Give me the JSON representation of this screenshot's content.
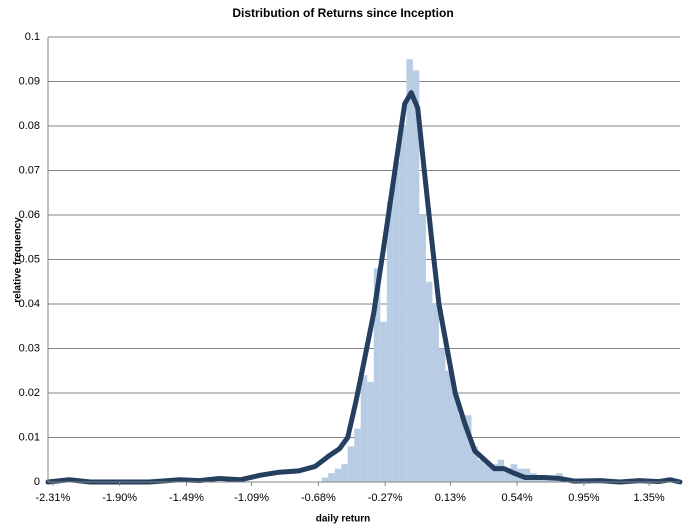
{
  "chart_data": {
    "type": "histogram",
    "title": "Distribution of Returns since Inception",
    "x_label": "daily return",
    "y_label": "relative frequency",
    "bins": [
      -0.66,
      -0.62,
      -0.58,
      -0.54,
      -0.5,
      -0.46,
      -0.42,
      -0.38,
      -0.34,
      -0.3,
      -0.26,
      -0.22,
      -0.18,
      -0.14,
      -0.1,
      -0.06,
      -0.02,
      0.02,
      0.06,
      0.1,
      0.14,
      0.18,
      0.22,
      0.26,
      0.3,
      0.34,
      0.38,
      0.42,
      0.46,
      0.5,
      0.54,
      0.58,
      0.62,
      0.66,
      0.7,
      0.74,
      0.78,
      0.82,
      0.86,
      0.9,
      0.94,
      0.98
    ],
    "values": [
      0.001,
      0.002,
      0.003,
      0.004,
      0.008,
      0.012,
      0.024,
      0.0225,
      0.048,
      0.036,
      0.063,
      0.072,
      0.08,
      0.095,
      0.0925,
      0.06,
      0.045,
      0.04,
      0.03,
      0.025,
      0.02,
      0.015,
      0.015,
      0.008,
      0.005,
      0.004,
      0.004,
      0.005,
      0.003,
      0.004,
      0.003,
      0.003,
      0.002,
      0.001,
      0.001,
      0.0015,
      0.002,
      0.001,
      0.0005,
      0.0005,
      0.0005
    ],
    "color": "#b8cce4",
    "line": {
      "color": "#243f60",
      "x": [
        -2.34,
        -2.21,
        -2.08,
        -1.72,
        -1.53,
        -1.41,
        -1.29,
        -1.16,
        -1.04,
        -0.92,
        -0.8,
        -0.7,
        -0.61,
        -0.55,
        -0.5,
        -0.45,
        -0.4,
        -0.34,
        -0.27,
        -0.21,
        -0.15,
        -0.11,
        -0.07,
        -0.03,
        0.02,
        0.06,
        0.11,
        0.16,
        0.22,
        0.28,
        0.34,
        0.4,
        0.46,
        0.52,
        0.59,
        0.71,
        0.8,
        0.89,
        1.05,
        1.17,
        1.29,
        1.41,
        1.48,
        1.54
      ],
      "values": [
        0,
        0.0005,
        0,
        0,
        0.0005,
        0.0003,
        0.0008,
        0.0005,
        0.0015,
        0.0022,
        0.0025,
        0.0035,
        0.006,
        0.0075,
        0.01,
        0.018,
        0.027,
        0.038,
        0.055,
        0.07,
        0.085,
        0.0875,
        0.084,
        0.07,
        0.053,
        0.04,
        0.03,
        0.02,
        0.013,
        0.007,
        0.005,
        0.003,
        0.003,
        0.002,
        0.001,
        0.001,
        0.0008,
        0.0002,
        0.0003,
        0,
        0.0003,
        0.0001,
        0.0005,
        0
      ]
    },
    "xlim": [
      -2.34,
      1.54
    ],
    "xticks": [
      {
        "value": -2.31,
        "label": "-2.31%"
      },
      {
        "value": -1.9,
        "label": "-1.90%"
      },
      {
        "value": -1.49,
        "label": "-1.49%"
      },
      {
        "value": -1.09,
        "label": "-1.09%"
      },
      {
        "value": -0.68,
        "label": "-0.68%"
      },
      {
        "value": -0.27,
        "label": "-0.27%"
      },
      {
        "value": 0.13,
        "label": "0.13%"
      },
      {
        "value": 0.54,
        "label": "0.54%"
      },
      {
        "value": 0.95,
        "label": "0.95%"
      },
      {
        "value": 1.35,
        "label": "1.35%"
      }
    ],
    "ylim": [
      0,
      0.1
    ],
    "yticks": [
      0,
      0.01,
      0.02,
      0.03,
      0.04,
      0.05,
      0.06,
      0.07,
      0.08,
      0.09,
      0.1
    ],
    "grid": true
  }
}
